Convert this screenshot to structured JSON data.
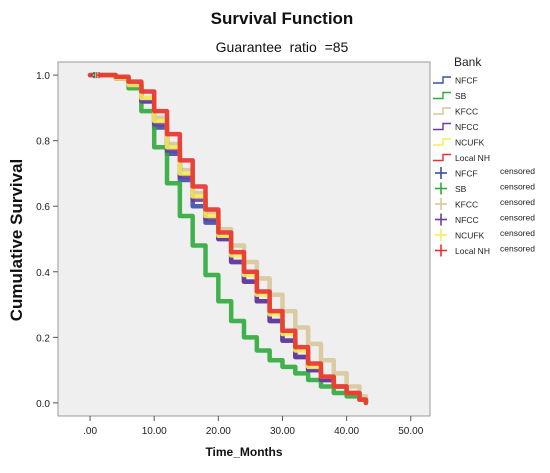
{
  "chart_data": {
    "type": "line",
    "title": "Survival Function",
    "subtitle": "Guarantee  ratio  =85",
    "xlabel": "Time_Months",
    "ylabel": "Cumulative Survival",
    "xlim": [
      -5,
      53
    ],
    "ylim": [
      -0.04,
      1.04
    ],
    "x_ticks": [
      0,
      10,
      20,
      30,
      40,
      50
    ],
    "x_tick_labels": [
      ".00",
      "10.00",
      "20.00",
      "30.00",
      "40.00",
      "50.00"
    ],
    "y_ticks": [
      0,
      0.2,
      0.4,
      0.6,
      0.8,
      1.0
    ],
    "y_tick_labels": [
      "0.0",
      "0.2",
      "0.4",
      "0.6",
      "0.8",
      "1.0"
    ],
    "grid": false,
    "legend_title": "Bank",
    "legend_placement": "right",
    "series": [
      {
        "name": "NFCF",
        "color": "#3a4fa8",
        "x": [
          0,
          2,
          4,
          6,
          8,
          10,
          12,
          14,
          16,
          18,
          20,
          22,
          24,
          26,
          28,
          30,
          32,
          34,
          36,
          38,
          40,
          42,
          43
        ],
        "y": [
          1.0,
          1.0,
          0.99,
          0.97,
          0.92,
          0.84,
          0.76,
          0.68,
          0.6,
          0.55,
          0.5,
          0.43,
          0.37,
          0.31,
          0.25,
          0.19,
          0.14,
          0.1,
          0.07,
          0.05,
          0.03,
          0.01,
          0.0
        ]
      },
      {
        "name": "SB",
        "color": "#2eaa3c",
        "x": [
          0,
          2,
          4,
          6,
          8,
          10,
          12,
          14,
          16,
          18,
          20,
          22,
          24,
          26,
          28,
          30,
          32,
          34,
          36,
          38,
          40,
          42,
          43
        ],
        "y": [
          1.0,
          1.0,
          0.99,
          0.96,
          0.89,
          0.78,
          0.67,
          0.57,
          0.48,
          0.39,
          0.31,
          0.25,
          0.2,
          0.16,
          0.13,
          0.11,
          0.09,
          0.07,
          0.05,
          0.03,
          0.02,
          0.01,
          0.0
        ]
      },
      {
        "name": "KFCC",
        "color": "#d8c69a",
        "x": [
          0,
          2,
          4,
          6,
          8,
          10,
          12,
          14,
          16,
          18,
          20,
          22,
          24,
          26,
          28,
          30,
          32,
          34,
          36,
          38,
          40,
          42,
          43
        ],
        "y": [
          1.0,
          1.0,
          0.99,
          0.97,
          0.93,
          0.87,
          0.79,
          0.71,
          0.64,
          0.58,
          0.53,
          0.48,
          0.43,
          0.38,
          0.33,
          0.28,
          0.23,
          0.18,
          0.13,
          0.09,
          0.05,
          0.02,
          0.0
        ]
      },
      {
        "name": "NFCC",
        "color": "#6a3aa0",
        "x": [
          0,
          2,
          4,
          6,
          8,
          10,
          12,
          14,
          16,
          18,
          20,
          22,
          24,
          26,
          28,
          30,
          32,
          34,
          36,
          38,
          40,
          42,
          43
        ],
        "y": [
          1.0,
          1.0,
          0.99,
          0.97,
          0.92,
          0.85,
          0.77,
          0.69,
          0.62,
          0.56,
          0.5,
          0.43,
          0.37,
          0.31,
          0.25,
          0.19,
          0.14,
          0.1,
          0.07,
          0.05,
          0.03,
          0.01,
          0.0
        ]
      },
      {
        "name": "NCUFK",
        "color": "#f5ec5a",
        "x": [
          0,
          2,
          4,
          6,
          8,
          10,
          12,
          14,
          16,
          18,
          20,
          22,
          24,
          26,
          28,
          30,
          32,
          34,
          36,
          38,
          40,
          42,
          43
        ],
        "y": [
          1.0,
          1.0,
          0.99,
          0.97,
          0.93,
          0.86,
          0.78,
          0.7,
          0.63,
          0.57,
          0.51,
          0.45,
          0.39,
          0.33,
          0.27,
          0.21,
          0.16,
          0.11,
          0.08,
          0.05,
          0.03,
          0.01,
          0.0
        ]
      },
      {
        "name": "Local  NH",
        "color": "#e8302e",
        "x": [
          0,
          2,
          4,
          6,
          8,
          10,
          12,
          14,
          16,
          18,
          20,
          22,
          24,
          26,
          28,
          30,
          32,
          34,
          36,
          38,
          40,
          42,
          43
        ],
        "y": [
          1.0,
          1.0,
          0.995,
          0.98,
          0.95,
          0.89,
          0.82,
          0.74,
          0.66,
          0.59,
          0.52,
          0.46,
          0.4,
          0.34,
          0.28,
          0.22,
          0.17,
          0.12,
          0.08,
          0.05,
          0.03,
          0.01,
          0.0
        ]
      }
    ],
    "legend_entries": [
      {
        "name": "NFCF",
        "suffix": "",
        "kind": "line",
        "color": "#3a4fa8"
      },
      {
        "name": "SB",
        "suffix": "",
        "kind": "line",
        "color": "#2eaa3c"
      },
      {
        "name": "KFCC",
        "suffix": "",
        "kind": "line",
        "color": "#d8c69a"
      },
      {
        "name": "NFCC",
        "suffix": "",
        "kind": "line",
        "color": "#6a3aa0"
      },
      {
        "name": "NCUFK",
        "suffix": "",
        "kind": "line",
        "color": "#f5ec5a"
      },
      {
        "name": "Local  NH",
        "suffix": "",
        "kind": "line",
        "color": "#e8302e"
      },
      {
        "name": "NFCF",
        "suffix": "censored",
        "kind": "censored",
        "color": "#3a4fa8"
      },
      {
        "name": "SB",
        "suffix": "censored",
        "kind": "censored",
        "color": "#2eaa3c"
      },
      {
        "name": "KFCC",
        "suffix": "censored",
        "kind": "censored",
        "color": "#d8c69a"
      },
      {
        "name": "NFCC",
        "suffix": "censored",
        "kind": "censored",
        "color": "#6a3aa0"
      },
      {
        "name": "NCUFK",
        "suffix": "censored",
        "kind": "censored",
        "color": "#f5ec5a"
      },
      {
        "name": "Local  NH",
        "suffix": "censored",
        "kind": "censored",
        "color": "#e8302e"
      }
    ],
    "plot_background": "#efefef"
  }
}
